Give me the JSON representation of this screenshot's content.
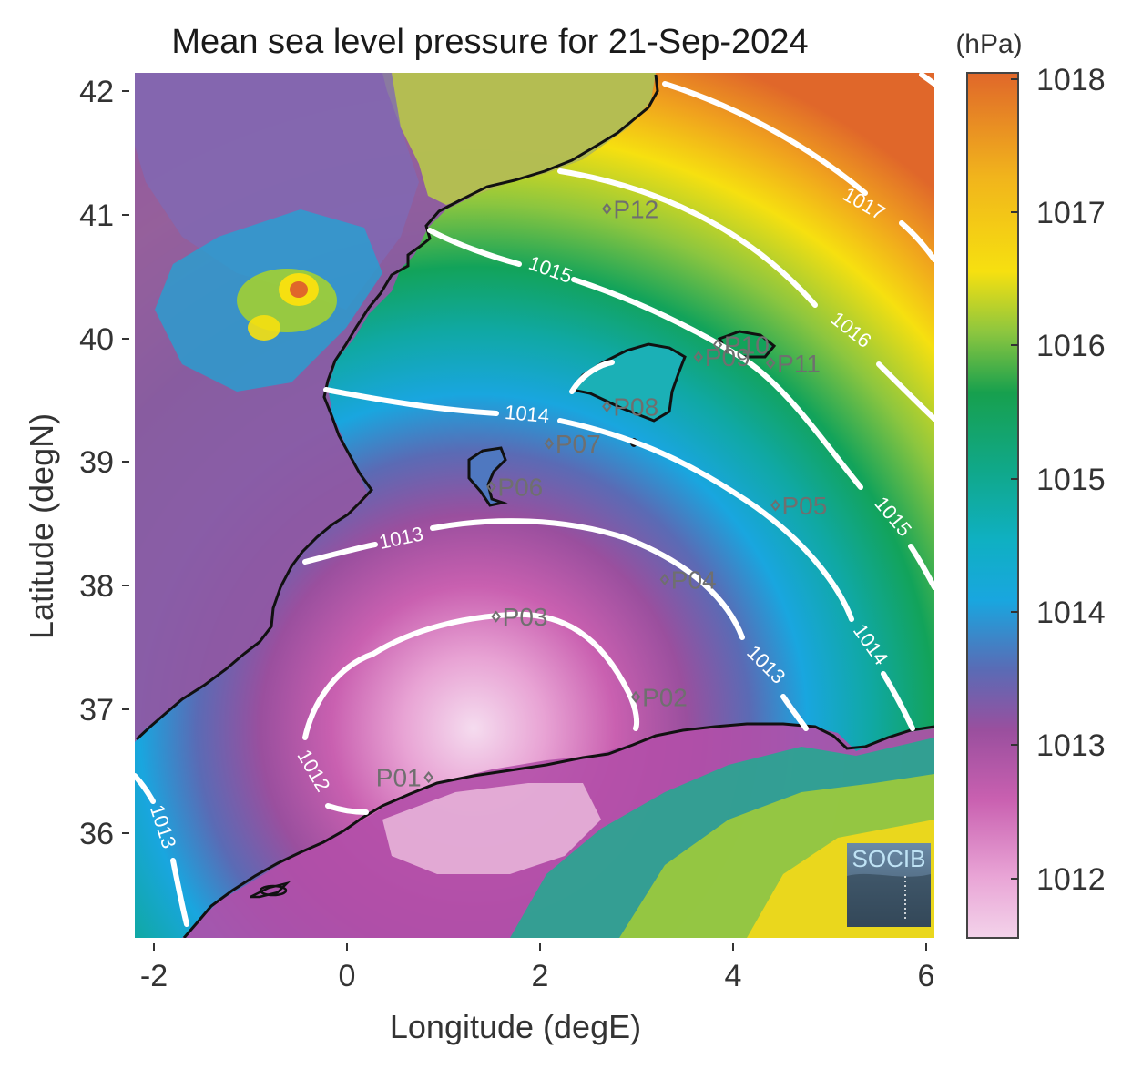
{
  "title": "Mean sea level pressure for 21-Sep-2024",
  "xlabel": "Longitude (degE)",
  "ylabel": "Latitude (degN)",
  "colorbar_unit": "(hPa)",
  "logo_text": "SOCIB",
  "axes": {
    "x_ticks": [
      "-2",
      "0",
      "2",
      "4",
      "6"
    ],
    "y_ticks": [
      "42",
      "41",
      "40",
      "39",
      "38",
      "37",
      "36"
    ],
    "colorbar_ticks": [
      "1018",
      "1017",
      "1016",
      "1015",
      "1014",
      "1013",
      "1012"
    ]
  },
  "contour_labels": [
    {
      "text": "1017"
    },
    {
      "text": "1016"
    },
    {
      "text": "1015"
    },
    {
      "text": "1015"
    },
    {
      "text": "1014"
    },
    {
      "text": "1014"
    },
    {
      "text": "1013"
    },
    {
      "text": "1013"
    },
    {
      "text": "1012"
    },
    {
      "text": "1013"
    }
  ],
  "chart_data": {
    "type": "heatmap",
    "title": "Mean sea level pressure for 21-Sep-2024",
    "xlabel": "Longitude (degE)",
    "ylabel": "Latitude (degN)",
    "xlim": [
      -2.2,
      6.1
    ],
    "ylim": [
      35.2,
      42.2
    ],
    "colorbar": {
      "label": "(hPa)",
      "range": [
        1011.6,
        1018.1
      ],
      "ticks": [
        1012,
        1013,
        1014,
        1015,
        1016,
        1017,
        1018
      ]
    },
    "colors": {
      "low": "#f3d3ea",
      "mid_low": "#9a4f9e",
      "mid": "#19a6df",
      "mid_high": "#17a04e",
      "high_mid": "#f6e010",
      "high": "#e0672a"
    },
    "contour_levels": [
      1012,
      1013,
      1014,
      1015,
      1016,
      1017
    ],
    "stations": [
      {
        "name": "P01",
        "lon": 0.85,
        "lat": 36.5
      },
      {
        "name": "P02",
        "lon": 3.0,
        "lat": 37.15
      },
      {
        "name": "P03",
        "lon": 1.55,
        "lat": 37.8
      },
      {
        "name": "P04",
        "lon": 3.3,
        "lat": 38.1
      },
      {
        "name": "P05",
        "lon": 4.45,
        "lat": 38.7
      },
      {
        "name": "P06",
        "lon": 1.5,
        "lat": 38.85
      },
      {
        "name": "P07",
        "lon": 2.1,
        "lat": 39.2
      },
      {
        "name": "P08",
        "lon": 2.7,
        "lat": 39.5
      },
      {
        "name": "P09",
        "lon": 3.65,
        "lat": 39.9
      },
      {
        "name": "P10",
        "lon": 3.85,
        "lat": 40.0
      },
      {
        "name": "P11",
        "lon": 4.4,
        "lat": 39.85
      },
      {
        "name": "P12",
        "lon": 2.7,
        "lat": 41.1
      }
    ]
  }
}
